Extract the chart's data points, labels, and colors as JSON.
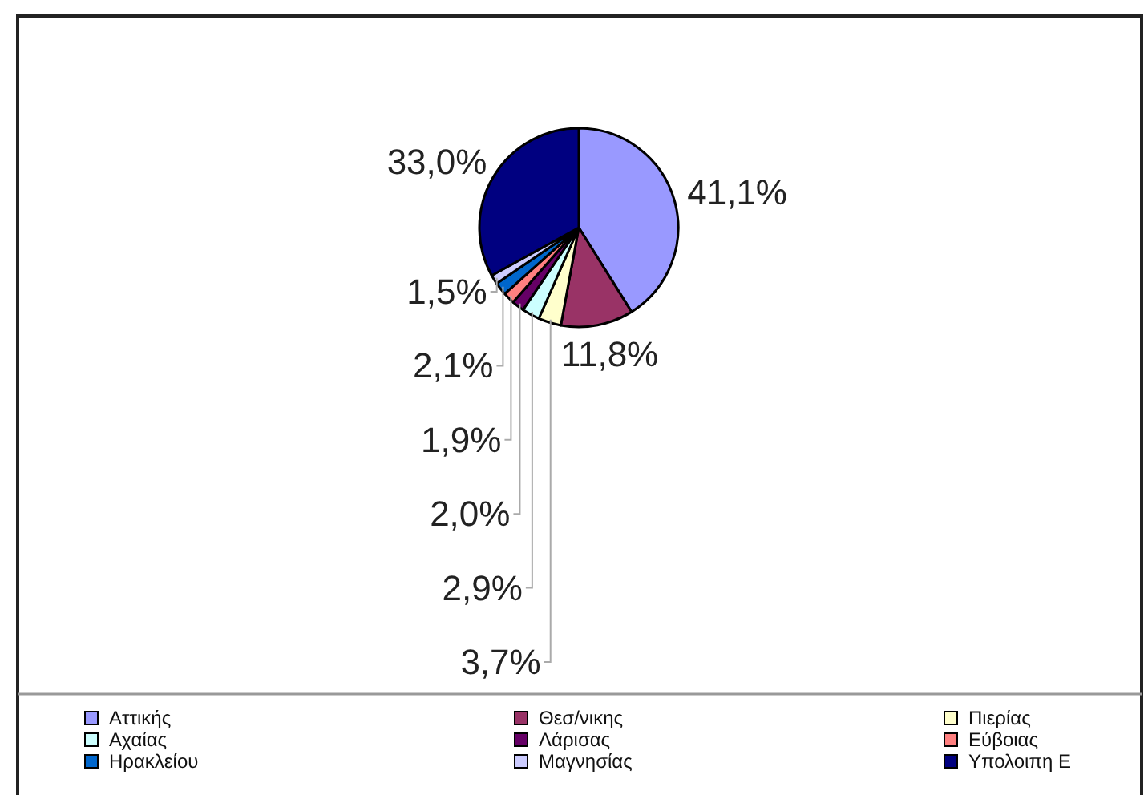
{
  "chart_data": {
    "type": "pie",
    "categories": [
      "Αττικής",
      "Θεσ/νικης",
      "Πιερίας",
      "Αχαίας",
      "Λάρισας",
      "Εύβοιας",
      "Ηρακλείου",
      "Μαγνησίας",
      "Υπολοιπη Ε"
    ],
    "values": [
      41.1,
      11.8,
      3.7,
      2.9,
      2.0,
      1.9,
      2.1,
      1.5,
      33.0
    ],
    "colors": [
      "#9999ff",
      "#993366",
      "#ffffcc",
      "#ccffff",
      "#660066",
      "#ff8080",
      "#0066cc",
      "#ccccff",
      "#000080"
    ],
    "value_labels": [
      "41,1%",
      "11,8%",
      "3,7%",
      "2,9%",
      "2,0%",
      "1,9%",
      "2,1%",
      "1,5%",
      "33,0%"
    ],
    "legend": "bottom"
  }
}
